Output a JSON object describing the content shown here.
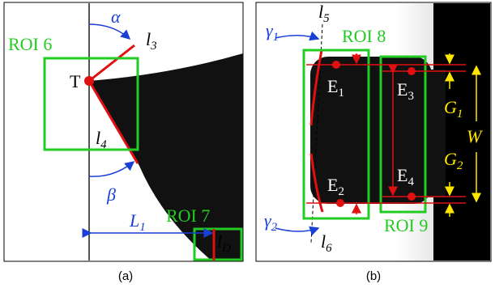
{
  "panel_a": {
    "alpha": "α",
    "l3": {
      "base": "l",
      "sub": "3"
    },
    "roi6": "ROI 6",
    "T": "T",
    "l4": {
      "base": "l",
      "sub": "4"
    },
    "beta": "β",
    "roi7": "ROI 7",
    "L1": {
      "base": "L",
      "sub": "1"
    },
    "lD": {
      "base": "l",
      "sub": "D"
    },
    "caption": "(a)"
  },
  "panel_b": {
    "gamma1": {
      "base": "γ",
      "sub": "1"
    },
    "l5": {
      "base": "l",
      "sub": "5"
    },
    "roi8": "ROI 8",
    "E1": {
      "base": "E",
      "sub": "1"
    },
    "E3": {
      "base": "E",
      "sub": "3"
    },
    "G1": {
      "base": "G",
      "sub": "1"
    },
    "W": "W",
    "G2": {
      "base": "G",
      "sub": "2"
    },
    "E2": {
      "base": "E",
      "sub": "2"
    },
    "E4": {
      "base": "E",
      "sub": "4"
    },
    "gamma2": {
      "base": "γ",
      "sub": "2"
    },
    "l6": {
      "base": "l",
      "sub": "6"
    },
    "roi9": "ROI 9",
    "caption": "(b)"
  }
}
